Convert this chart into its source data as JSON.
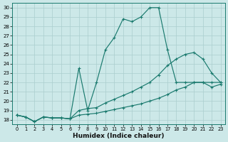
{
  "title": "",
  "xlabel": "Humidex (Indice chaleur)",
  "bg_color": "#cce8e8",
  "line_color": "#1a7a6e",
  "grid_color": "#aacece",
  "xlim": [
    -0.5,
    23.5
  ],
  "ylim": [
    17.5,
    30.5
  ],
  "yticks": [
    18,
    19,
    20,
    21,
    22,
    23,
    24,
    25,
    26,
    27,
    28,
    29,
    30
  ],
  "xticks": [
    0,
    1,
    2,
    3,
    4,
    5,
    6,
    7,
    8,
    9,
    10,
    11,
    12,
    13,
    14,
    15,
    16,
    17,
    18,
    19,
    20,
    21,
    22,
    23
  ],
  "line1_x": [
    0,
    1,
    2,
    3,
    4,
    5,
    6,
    7,
    8,
    9,
    10,
    11,
    12,
    13,
    14,
    15,
    16,
    17,
    18,
    19,
    20,
    21,
    22,
    23
  ],
  "line1_y": [
    18.5,
    18.3,
    17.8,
    18.3,
    18.2,
    18.2,
    18.1,
    23.5,
    19.0,
    22.0,
    25.5,
    26.8,
    28.8,
    28.5,
    29.0,
    30.0,
    30.0,
    25.5,
    22.0,
    22.0,
    22.0,
    22.0,
    22.0,
    22.0
  ],
  "line2_x": [
    0,
    1,
    2,
    3,
    4,
    5,
    6,
    7,
    8,
    9,
    10,
    11,
    12,
    13,
    14,
    15,
    16,
    17,
    18,
    19,
    20,
    21,
    22,
    23
  ],
  "line2_y": [
    18.5,
    18.3,
    17.8,
    18.3,
    18.2,
    18.2,
    18.1,
    19.0,
    19.2,
    19.3,
    19.8,
    20.2,
    20.6,
    21.0,
    21.5,
    22.0,
    22.8,
    23.8,
    24.5,
    25.0,
    25.2,
    24.5,
    23.0,
    22.0
  ],
  "line3_x": [
    0,
    1,
    2,
    3,
    4,
    5,
    6,
    7,
    8,
    9,
    10,
    11,
    12,
    13,
    14,
    15,
    16,
    17,
    18,
    19,
    20,
    21,
    22,
    23
  ],
  "line3_y": [
    18.5,
    18.3,
    17.8,
    18.3,
    18.2,
    18.2,
    18.1,
    18.5,
    18.6,
    18.7,
    18.9,
    19.1,
    19.3,
    19.5,
    19.7,
    20.0,
    20.3,
    20.7,
    21.2,
    21.5,
    22.0,
    22.0,
    21.5,
    21.8
  ]
}
